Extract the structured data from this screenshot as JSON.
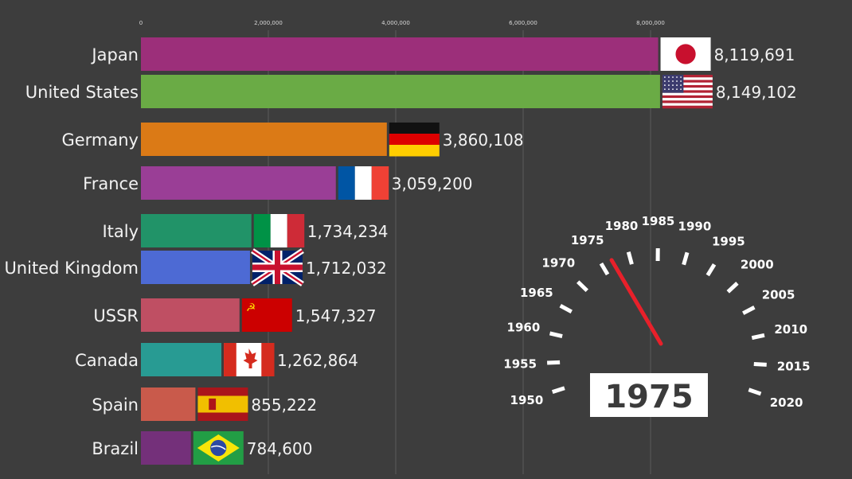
{
  "chart_data": {
    "type": "bar",
    "orientation": "horizontal",
    "x_range": [
      0,
      10000000
    ],
    "x_ticks": [
      0,
      2000000,
      4000000,
      6000000,
      8000000
    ],
    "x_tick_labels": [
      "0",
      "2,000,000",
      "4,000,000",
      "6,000,000",
      "8,000,000"
    ],
    "grid": true,
    "bars": [
      {
        "category": "Japan",
        "value": 8119691,
        "value_label": "8,119,691",
        "color": "#9c2f7a",
        "flag": "japan-flag"
      },
      {
        "category": "United States",
        "value": 8149102,
        "value_label": "8,149,102",
        "color": "#6aab45",
        "flag": "usa-flag"
      },
      {
        "category": "Germany",
        "value": 3860108,
        "value_label": "3,860,108",
        "color": "#db7a16",
        "flag": "germany-flag"
      },
      {
        "category": "France",
        "value": 3059200,
        "value_label": "3,059,200",
        "color": "#9a3e96",
        "flag": "france-flag"
      },
      {
        "category": "Italy",
        "value": 1734234,
        "value_label": "1,734,234",
        "color": "#219368",
        "flag": "italy-flag"
      },
      {
        "category": "United Kingdom",
        "value": 1712032,
        "value_label": "1,712,032",
        "color": "#4d6ad4",
        "flag": "uk-flag"
      },
      {
        "category": "USSR",
        "value": 1547327,
        "value_label": "1,547,327",
        "color": "#bf4f63",
        "flag": "ussr-flag"
      },
      {
        "category": "Canada",
        "value": 1262864,
        "value_label": "1,262,864",
        "color": "#289b93",
        "flag": "canada-flag"
      },
      {
        "category": "Spain",
        "value": 855222,
        "value_label": "855,222",
        "color": "#c95a4b",
        "flag": "spain-flag"
      },
      {
        "category": "Brazil",
        "value": 784600,
        "value_label": "784,600",
        "color": "#74307a",
        "flag": "brazil-flag"
      }
    ],
    "gauge": {
      "years": [
        "1950",
        "1955",
        "1960",
        "1965",
        "1970",
        "1975",
        "1980",
        "1985",
        "1990",
        "1995",
        "2000",
        "2005",
        "2010",
        "2015",
        "2020"
      ],
      "current_year": "1975",
      "needle_color": "#e8202a"
    }
  }
}
